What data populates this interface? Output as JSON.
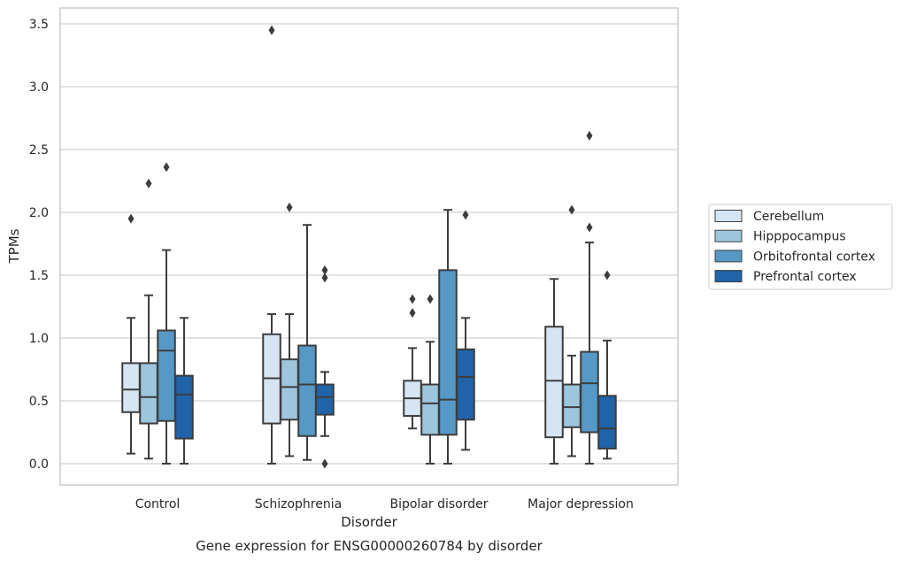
{
  "chart_data": {
    "type": "boxplot",
    "title": "",
    "caption": "Gene expression for ENSG00000260784 by disorder",
    "xlabel": "Disorder",
    "ylabel": "TPMs",
    "ylim": [
      -0.17,
      3.64
    ],
    "yticks": [
      "0.0",
      "0.5",
      "1.0",
      "1.5",
      "2.0",
      "2.5",
      "3.0",
      "3.5"
    ],
    "yticks_values": [
      0.0,
      0.5,
      1.0,
      1.5,
      2.0,
      2.5,
      3.0,
      3.5
    ],
    "categories": [
      "Control",
      "Schizophrenia",
      "Bipolar disorder",
      "Major depression"
    ],
    "grid": "horizontal",
    "legend_position": "right",
    "series": [
      {
        "name": "Cerebellum",
        "color": "#d6e5f3",
        "boxes": [
          {
            "min": 0.08,
            "q1": 0.41,
            "median": 0.59,
            "q3": 0.8,
            "max": 1.16,
            "outliers": [
              1.95
            ]
          },
          {
            "min": 0.0,
            "q1": 0.32,
            "median": 0.68,
            "q3": 1.03,
            "max": 1.19,
            "outliers": [
              3.45
            ]
          },
          {
            "min": 0.28,
            "q1": 0.38,
            "median": 0.52,
            "q3": 0.66,
            "max": 0.92,
            "outliers": [
              1.2,
              1.31
            ]
          },
          {
            "min": 0.0,
            "q1": 0.21,
            "median": 0.66,
            "q3": 1.09,
            "max": 1.47,
            "outliers": []
          }
        ]
      },
      {
        "name": "Hipppocampus",
        "color": "#9dc6dd",
        "boxes": [
          {
            "min": 0.04,
            "q1": 0.32,
            "median": 0.53,
            "q3": 0.8,
            "max": 1.34,
            "outliers": [
              2.23
            ]
          },
          {
            "min": 0.06,
            "q1": 0.35,
            "median": 0.61,
            "q3": 0.83,
            "max": 1.19,
            "outliers": [
              2.04
            ]
          },
          {
            "min": 0.0,
            "q1": 0.23,
            "median": 0.48,
            "q3": 0.63,
            "max": 0.97,
            "outliers": [
              1.31
            ]
          },
          {
            "min": 0.06,
            "q1": 0.29,
            "median": 0.45,
            "q3": 0.63,
            "max": 0.86,
            "outliers": [
              2.02
            ]
          }
        ]
      },
      {
        "name": "Orbitofrontal cortex",
        "color": "#5699c6",
        "boxes": [
          {
            "min": 0.0,
            "q1": 0.34,
            "median": 0.9,
            "q3": 1.06,
            "max": 1.7,
            "outliers": [
              2.36
            ]
          },
          {
            "min": 0.03,
            "q1": 0.22,
            "median": 0.63,
            "q3": 0.94,
            "max": 1.9,
            "outliers": []
          },
          {
            "min": 0.0,
            "q1": 0.23,
            "median": 0.51,
            "q3": 1.54,
            "max": 2.02,
            "outliers": []
          },
          {
            "min": 0.0,
            "q1": 0.25,
            "median": 0.64,
            "q3": 0.89,
            "max": 1.76,
            "outliers": [
              1.88,
              2.61
            ]
          }
        ]
      },
      {
        "name": "Prefrontal cortex",
        "color": "#2163a8",
        "boxes": [
          {
            "min": 0.0,
            "q1": 0.2,
            "median": 0.55,
            "q3": 0.7,
            "max": 1.16,
            "outliers": []
          },
          {
            "min": 0.22,
            "q1": 0.39,
            "median": 0.53,
            "q3": 0.63,
            "max": 0.73,
            "outliers": [
              0.0,
              1.48,
              1.54
            ]
          },
          {
            "min": 0.11,
            "q1": 0.35,
            "median": 0.69,
            "q3": 0.91,
            "max": 1.16,
            "outliers": [
              1.98
            ]
          },
          {
            "min": 0.04,
            "q1": 0.12,
            "median": 0.28,
            "q3": 0.54,
            "max": 0.98,
            "outliers": [
              1.5
            ]
          }
        ]
      }
    ]
  }
}
